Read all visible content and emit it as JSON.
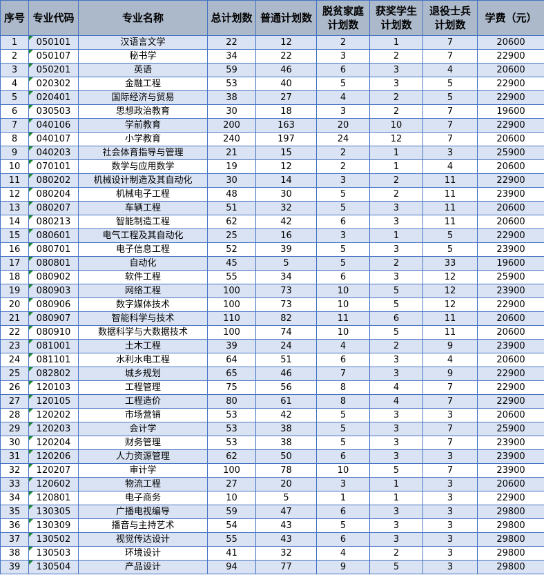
{
  "headers": [
    "序号",
    "专业代码",
    "专业名称",
    "总计划数",
    "普通计划数",
    "脱贫家庭\n计划数",
    "获奖学生\n计划数",
    "退役士兵\n计划数",
    "学费（元）"
  ],
  "colors": {
    "header_bg": "#acb9ca",
    "row_alt_bg": "#dae3f3",
    "border": "#4472c4",
    "text_flag": "#1e8a2e"
  },
  "rows": [
    [
      "1",
      "050101",
      "汉语言文学",
      "22",
      "12",
      "2",
      "1",
      "7",
      "20600"
    ],
    [
      "2",
      "050107",
      "秘书学",
      "34",
      "22",
      "3",
      "2",
      "7",
      "22900"
    ],
    [
      "3",
      "050201",
      "英语",
      "59",
      "46",
      "6",
      "3",
      "4",
      "20600"
    ],
    [
      "4",
      "020302",
      "金融工程",
      "53",
      "40",
      "5",
      "3",
      "5",
      "22900"
    ],
    [
      "5",
      "020401",
      "国际经济与贸易",
      "38",
      "27",
      "4",
      "2",
      "5",
      "22900"
    ],
    [
      "6",
      "030503",
      "思想政治教育",
      "30",
      "18",
      "3",
      "2",
      "7",
      "19600"
    ],
    [
      "7",
      "040106",
      "学前教育",
      "200",
      "163",
      "20",
      "10",
      "7",
      "22900"
    ],
    [
      "8",
      "040107",
      "小学教育",
      "240",
      "197",
      "24",
      "12",
      "7",
      "20600"
    ],
    [
      "9",
      "040203",
      "社会体育指导与管理",
      "21",
      "15",
      "2",
      "1",
      "3",
      "25900"
    ],
    [
      "10",
      "070101",
      "数学与应用数学",
      "19",
      "12",
      "2",
      "1",
      "4",
      "20600"
    ],
    [
      "11",
      "080202",
      "机械设计制造及其自动化",
      "30",
      "14",
      "3",
      "2",
      "11",
      "22900"
    ],
    [
      "12",
      "080204",
      "机械电子工程",
      "48",
      "30",
      "5",
      "2",
      "11",
      "23900"
    ],
    [
      "13",
      "080207",
      "车辆工程",
      "51",
      "32",
      "5",
      "3",
      "11",
      "20600"
    ],
    [
      "14",
      "080213",
      "智能制造工程",
      "62",
      "42",
      "6",
      "3",
      "11",
      "20600"
    ],
    [
      "15",
      "080601",
      "电气工程及其自动化",
      "25",
      "16",
      "3",
      "1",
      "5",
      "22900"
    ],
    [
      "16",
      "080701",
      "电子信息工程",
      "52",
      "39",
      "5",
      "3",
      "5",
      "23900"
    ],
    [
      "17",
      "080801",
      "自动化",
      "45",
      "5",
      "5",
      "2",
      "33",
      "19600"
    ],
    [
      "18",
      "080902",
      "软件工程",
      "55",
      "34",
      "6",
      "3",
      "12",
      "25900"
    ],
    [
      "19",
      "080903",
      "网络工程",
      "100",
      "73",
      "10",
      "5",
      "12",
      "23900"
    ],
    [
      "20",
      "080906",
      "数字媒体技术",
      "100",
      "73",
      "10",
      "5",
      "12",
      "22900"
    ],
    [
      "21",
      "080907",
      "智能科学与技术",
      "110",
      "82",
      "11",
      "6",
      "11",
      "20600"
    ],
    [
      "22",
      "080910",
      "数据科学与大数据技术",
      "100",
      "74",
      "10",
      "5",
      "11",
      "20600"
    ],
    [
      "23",
      "081001",
      "土木工程",
      "39",
      "24",
      "4",
      "2",
      "9",
      "23900"
    ],
    [
      "24",
      "081101",
      "水利水电工程",
      "64",
      "51",
      "6",
      "3",
      "4",
      "20600"
    ],
    [
      "25",
      "082802",
      "城乡规划",
      "65",
      "46",
      "7",
      "3",
      "9",
      "22900"
    ],
    [
      "26",
      "120103",
      "工程管理",
      "75",
      "56",
      "8",
      "4",
      "7",
      "22900"
    ],
    [
      "27",
      "120105",
      "工程造价",
      "80",
      "61",
      "8",
      "4",
      "7",
      "22900"
    ],
    [
      "28",
      "120202",
      "市场营销",
      "53",
      "42",
      "5",
      "3",
      "3",
      "20600"
    ],
    [
      "29",
      "120203",
      "会计学",
      "53",
      "38",
      "5",
      "3",
      "7",
      "25900"
    ],
    [
      "30",
      "120204",
      "财务管理",
      "53",
      "38",
      "5",
      "3",
      "7",
      "23900"
    ],
    [
      "31",
      "120206",
      "人力资源管理",
      "62",
      "50",
      "6",
      "3",
      "3",
      "23900"
    ],
    [
      "32",
      "120207",
      "审计学",
      "100",
      "78",
      "10",
      "5",
      "7",
      "23900"
    ],
    [
      "33",
      "120602",
      "物流工程",
      "27",
      "20",
      "3",
      "1",
      "3",
      "20600"
    ],
    [
      "34",
      "120801",
      "电子商务",
      "10",
      "5",
      "1",
      "1",
      "3",
      "22900"
    ],
    [
      "35",
      "130305",
      "广播电视编导",
      "59",
      "47",
      "6",
      "3",
      "3",
      "29800"
    ],
    [
      "36",
      "130309",
      "播音与主持艺术",
      "54",
      "43",
      "5",
      "3",
      "3",
      "29800"
    ],
    [
      "37",
      "130502",
      "视觉传达设计",
      "55",
      "43",
      "6",
      "3",
      "3",
      "29800"
    ],
    [
      "38",
      "130503",
      "环境设计",
      "41",
      "32",
      "4",
      "2",
      "3",
      "29800"
    ],
    [
      "39",
      "130504",
      "产品设计",
      "94",
      "77",
      "9",
      "5",
      "3",
      "29800"
    ]
  ]
}
